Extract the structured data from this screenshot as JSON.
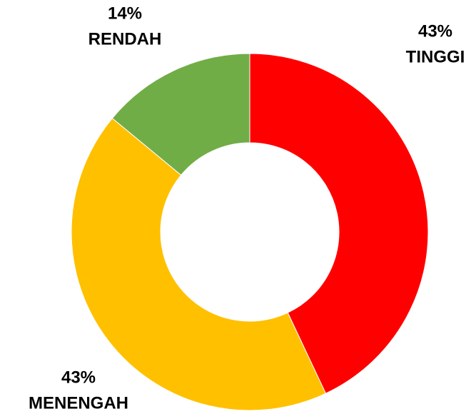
{
  "chart_data": {
    "type": "donut",
    "categories": [
      "TINGGI",
      "MENENGAH",
      "RENDAH"
    ],
    "values": [
      43,
      43,
      14
    ],
    "value_labels": [
      "43%",
      "43%",
      "14%"
    ],
    "colors": [
      "#ff0000",
      "#ffc000",
      "#70ad47"
    ]
  }
}
